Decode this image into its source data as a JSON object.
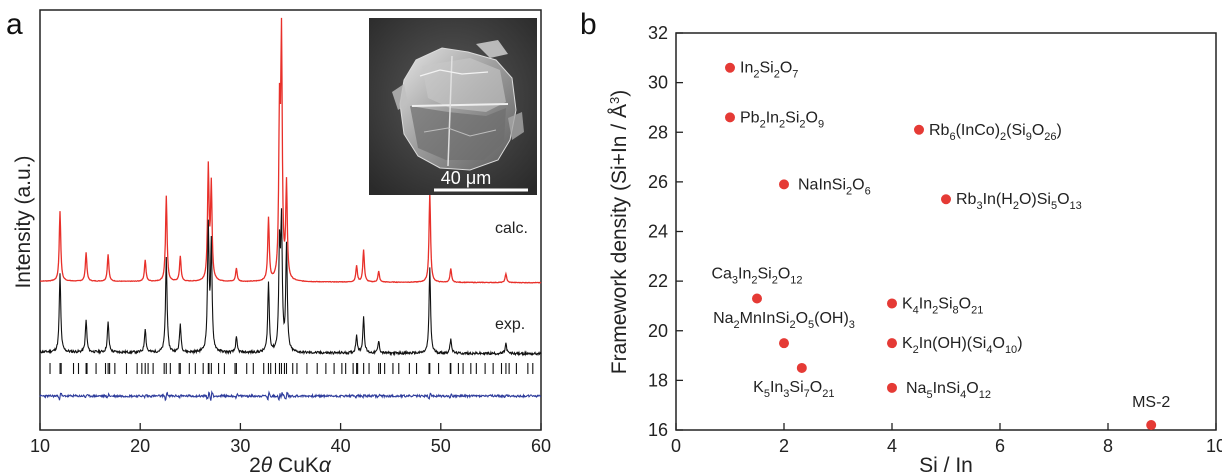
{
  "chart_data": [
    {
      "type": "line",
      "panel_label": "a",
      "xlabel": "2θ CuKα",
      "ylabel": "Intensity (a.u.)",
      "xlim": [
        10,
        60
      ],
      "xticks": [
        10,
        20,
        30,
        40,
        50,
        60
      ],
      "series": [
        {
          "name": "calc.",
          "color": "#e8302a",
          "peaks": [
            [
              12.0,
              0.78
            ],
            [
              14.6,
              0.32
            ],
            [
              16.8,
              0.3
            ],
            [
              20.5,
              0.24
            ],
            [
              22.6,
              0.95
            ],
            [
              24.0,
              0.28
            ],
            [
              26.8,
              1.25
            ],
            [
              27.1,
              1.05
            ],
            [
              29.6,
              0.15
            ],
            [
              32.8,
              0.7
            ],
            [
              33.9,
              1.75
            ],
            [
              34.1,
              2.6
            ],
            [
              34.6,
              1.05
            ],
            [
              41.6,
              0.18
            ],
            [
              42.3,
              0.36
            ],
            [
              43.8,
              0.12
            ],
            [
              48.9,
              1.0
            ],
            [
              51.0,
              0.15
            ],
            [
              56.5,
              0.1
            ]
          ]
        },
        {
          "name": "exp.",
          "color": "#111111",
          "peaks": [
            [
              12.0,
              0.78
            ],
            [
              14.6,
              0.32
            ],
            [
              16.8,
              0.3
            ],
            [
              20.5,
              0.24
            ],
            [
              22.6,
              0.95
            ],
            [
              24.0,
              0.28
            ],
            [
              26.8,
              1.25
            ],
            [
              27.1,
              1.05
            ],
            [
              29.6,
              0.15
            ],
            [
              32.8,
              0.7
            ],
            [
              33.9,
              1.0
            ],
            [
              34.1,
              1.25
            ],
            [
              34.6,
              1.05
            ],
            [
              41.6,
              0.18
            ],
            [
              42.3,
              0.36
            ],
            [
              43.8,
              0.12
            ],
            [
              48.9,
              0.85
            ],
            [
              51.0,
              0.15
            ],
            [
              56.5,
              0.1
            ]
          ]
        },
        {
          "name": "difference",
          "color": "#2e3c9c"
        }
      ],
      "inset": {
        "scale_bar": "40 μm"
      }
    },
    {
      "type": "scatter",
      "panel_label": "b",
      "xlabel": "Si / In",
      "ylabel": "Framework density (Si+In / Å³)",
      "xlim": [
        0,
        10
      ],
      "ylim": [
        16,
        32
      ],
      "xticks": [
        0,
        2,
        4,
        6,
        8,
        10
      ],
      "yticks": [
        16,
        18,
        20,
        22,
        24,
        26,
        28,
        30,
        32
      ],
      "color": "#e53a35",
      "points": [
        {
          "x": 1.0,
          "y": 30.6,
          "label": "In2Si2O7"
        },
        {
          "x": 1.0,
          "y": 28.6,
          "label": "Pb2In2Si2O9"
        },
        {
          "x": 4.5,
          "y": 28.1,
          "label": "Rb6(InCo)2(Si9O26)"
        },
        {
          "x": 2.0,
          "y": 25.9,
          "label": "NaInSi2O6"
        },
        {
          "x": 5.0,
          "y": 25.3,
          "label": "Rb3In(H2O)Si5O13"
        },
        {
          "x": 1.5,
          "y": 21.3,
          "label": "Ca3In2Si2O12"
        },
        {
          "x": 4.0,
          "y": 21.1,
          "label": "K4In2Si8O21"
        },
        {
          "x": 2.0,
          "y": 19.5,
          "label": "Na2MnInSi2O5(OH)3"
        },
        {
          "x": 4.0,
          "y": 19.5,
          "label": "K2In(OH)(Si4O10)"
        },
        {
          "x": 2.33,
          "y": 18.5,
          "label": "K5In3Si7O21"
        },
        {
          "x": 4.0,
          "y": 17.7,
          "label": "Na5InSi4O12"
        },
        {
          "x": 8.8,
          "y": 16.2,
          "label": "MS-2"
        }
      ]
    }
  ]
}
